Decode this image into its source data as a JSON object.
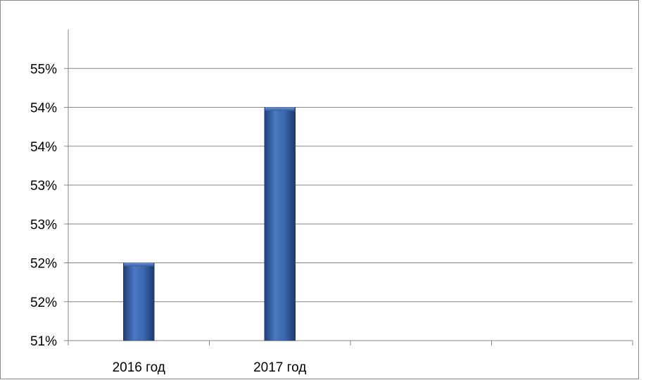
{
  "chart_data": {
    "type": "bar",
    "categories": [
      "2016 год",
      "2017 год",
      "",
      ""
    ],
    "values": [
      51.75,
      53.75,
      null,
      null
    ],
    "ylim": [
      50.75,
      54.75
    ],
    "yticks": [
      {
        "value": 50.75,
        "label": "51%"
      },
      {
        "value": 51.25,
        "label": "52%"
      },
      {
        "value": 51.75,
        "label": "52%"
      },
      {
        "value": 52.25,
        "label": "53%"
      },
      {
        "value": 52.75,
        "label": "53%"
      },
      {
        "value": 53.25,
        "label": "54%"
      },
      {
        "value": 53.75,
        "label": "54%"
      },
      {
        "value": 54.25,
        "label": "55%"
      }
    ],
    "grid": true,
    "legend": "none",
    "bar_color": "#2f5b9e"
  }
}
